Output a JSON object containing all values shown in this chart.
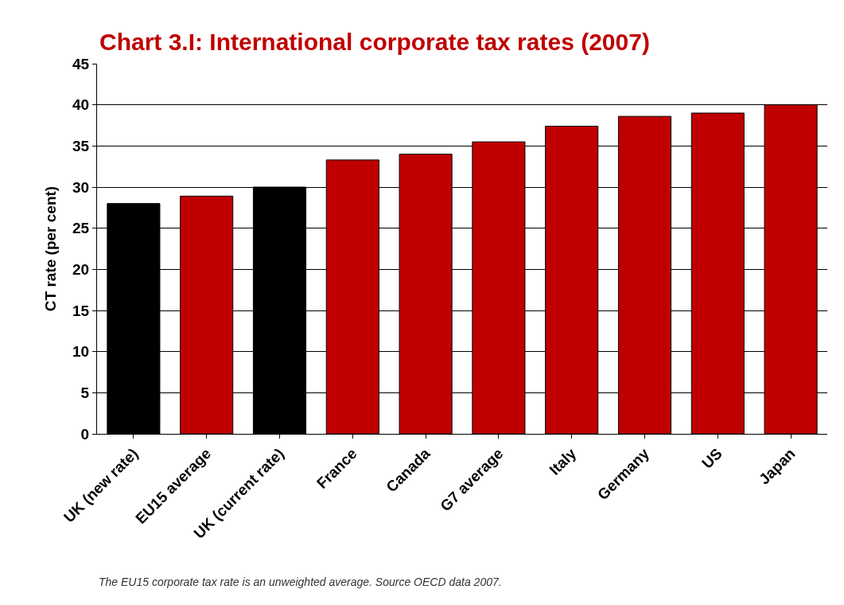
{
  "chart_data": {
    "type": "bar",
    "title": "Chart 3.I: International corporate tax rates (2007)",
    "ylabel": "CT rate (per cent)",
    "categories": [
      "UK (new rate)",
      "EU15 average",
      "UK (current rate)",
      "France",
      "Canada",
      "G7 average",
      "Italy",
      "Germany",
      "US",
      "Japan"
    ],
    "values": [
      28,
      28.9,
      30,
      33.3,
      34,
      35.5,
      37.4,
      38.6,
      39,
      40
    ],
    "colors": [
      "#000000",
      "#c00000",
      "#000000",
      "#c00000",
      "#c00000",
      "#c00000",
      "#c00000",
      "#c00000",
      "#c00000",
      "#c00000"
    ],
    "ylim": [
      0,
      45
    ],
    "yticks": [
      0,
      5,
      10,
      15,
      20,
      25,
      30,
      35,
      40,
      45
    ],
    "grid": "y",
    "annotations": [
      "The EU15 corporate tax rate is an unweighted average. Source OECD data 2007."
    ]
  }
}
